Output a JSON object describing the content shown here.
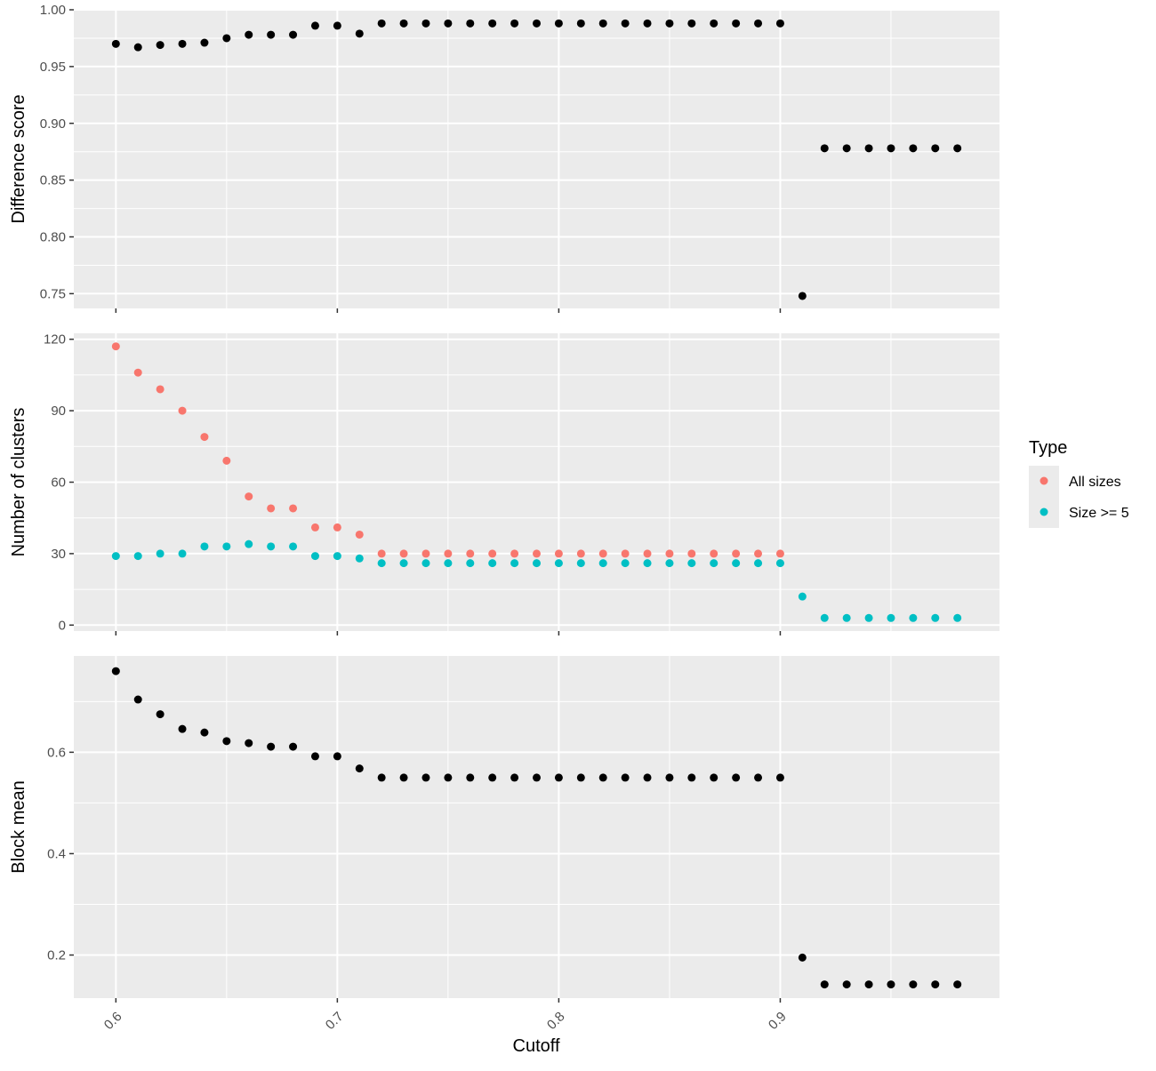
{
  "chart_data": [
    {
      "type": "scatter",
      "panel": "top",
      "ylabel": "Difference score",
      "xlim": [
        0.581,
        0.999
      ],
      "ylim": [
        0.737,
        1.0
      ],
      "x_ticks": [
        0.6,
        0.7,
        0.8,
        0.9
      ],
      "y_ticks": [
        0.75,
        0.8,
        0.85,
        0.9,
        0.95,
        1.0
      ],
      "y_tick_labels": [
        "0.75",
        "0.80",
        "0.85",
        "0.90",
        "0.95",
        "1.00"
      ],
      "grid": true,
      "series": [
        {
          "color": "#000000",
          "x": [
            0.6,
            0.61,
            0.62,
            0.63,
            0.64,
            0.65,
            0.66,
            0.67,
            0.68,
            0.69,
            0.7,
            0.71,
            0.72,
            0.73,
            0.74,
            0.75,
            0.76,
            0.77,
            0.78,
            0.79,
            0.8,
            0.81,
            0.82,
            0.83,
            0.84,
            0.85,
            0.86,
            0.87,
            0.88,
            0.89,
            0.9,
            0.91,
            0.92,
            0.93,
            0.94,
            0.95,
            0.96,
            0.97,
            0.98
          ],
          "y": [
            0.97,
            0.967,
            0.969,
            0.97,
            0.971,
            0.975,
            0.978,
            0.978,
            0.978,
            0.986,
            0.986,
            0.979,
            0.988,
            0.988,
            0.988,
            0.988,
            0.988,
            0.988,
            0.988,
            0.988,
            0.988,
            0.988,
            0.988,
            0.988,
            0.988,
            0.988,
            0.988,
            0.988,
            0.988,
            0.988,
            0.988,
            0.748,
            0.878,
            0.878,
            0.878,
            0.878,
            0.878,
            0.878,
            0.878
          ]
        }
      ]
    },
    {
      "type": "scatter",
      "panel": "middle",
      "ylabel": "Number of clusters",
      "xlim": [
        0.581,
        0.999
      ],
      "ylim": [
        -2.5,
        122.5
      ],
      "x_ticks": [
        0.6,
        0.7,
        0.8,
        0.9
      ],
      "y_ticks": [
        0,
        30,
        60,
        90,
        120
      ],
      "y_tick_labels": [
        "0",
        "30",
        "60",
        "90",
        "120"
      ],
      "grid": true,
      "legend": {
        "title": "Type",
        "position": "right",
        "entries": [
          {
            "label": "All sizes",
            "color": "#F8766D"
          },
          {
            "label": "Size >= 5",
            "color": "#00BFC4"
          }
        ]
      },
      "series": [
        {
          "name": "All sizes",
          "color": "#F8766D",
          "x": [
            0.6,
            0.61,
            0.62,
            0.63,
            0.64,
            0.65,
            0.66,
            0.67,
            0.68,
            0.69,
            0.7,
            0.71,
            0.72,
            0.73,
            0.74,
            0.75,
            0.76,
            0.77,
            0.78,
            0.79,
            0.8,
            0.81,
            0.82,
            0.83,
            0.84,
            0.85,
            0.86,
            0.87,
            0.88,
            0.89,
            0.9
          ],
          "y": [
            117,
            106,
            99,
            90,
            79,
            69,
            54,
            49,
            49,
            41,
            41,
            38,
            30,
            30,
            30,
            30,
            30,
            30,
            30,
            30,
            30,
            30,
            30,
            30,
            30,
            30,
            30,
            30,
            30,
            30,
            30
          ]
        },
        {
          "name": "Size >= 5",
          "color": "#00BFC4",
          "x": [
            0.6,
            0.61,
            0.62,
            0.63,
            0.64,
            0.65,
            0.66,
            0.67,
            0.68,
            0.69,
            0.7,
            0.71,
            0.72,
            0.73,
            0.74,
            0.75,
            0.76,
            0.77,
            0.78,
            0.79,
            0.8,
            0.81,
            0.82,
            0.83,
            0.84,
            0.85,
            0.86,
            0.87,
            0.88,
            0.89,
            0.9,
            0.91,
            0.92,
            0.93,
            0.94,
            0.95,
            0.96,
            0.97,
            0.98
          ],
          "y": [
            29,
            29,
            30,
            30,
            33,
            33,
            34,
            33,
            33,
            29,
            29,
            28,
            26,
            26,
            26,
            26,
            26,
            26,
            26,
            26,
            26,
            26,
            26,
            26,
            26,
            26,
            26,
            26,
            26,
            26,
            26,
            12,
            3,
            3,
            3,
            3,
            3,
            3,
            3
          ]
        }
      ]
    },
    {
      "type": "scatter",
      "panel": "bottom",
      "ylabel": "Block mean",
      "xlabel": "Cutoff",
      "xlim": [
        0.581,
        0.999
      ],
      "ylim": [
        0.115,
        0.79
      ],
      "x_ticks": [
        0.6,
        0.7,
        0.8,
        0.9
      ],
      "x_tick_labels": [
        "0.6",
        "0.7",
        "0.8",
        "0.9"
      ],
      "y_ticks": [
        0.2,
        0.4,
        0.6
      ],
      "y_tick_labels": [
        "0.2",
        "0.4",
        "0.6"
      ],
      "grid": true,
      "series": [
        {
          "color": "#000000",
          "x": [
            0.6,
            0.61,
            0.62,
            0.63,
            0.64,
            0.65,
            0.66,
            0.67,
            0.68,
            0.69,
            0.7,
            0.71,
            0.72,
            0.73,
            0.74,
            0.75,
            0.76,
            0.77,
            0.78,
            0.79,
            0.8,
            0.81,
            0.82,
            0.83,
            0.84,
            0.85,
            0.86,
            0.87,
            0.88,
            0.89,
            0.9,
            0.91,
            0.92,
            0.93,
            0.94,
            0.95,
            0.96,
            0.97,
            0.98
          ],
          "y": [
            0.76,
            0.704,
            0.675,
            0.646,
            0.639,
            0.622,
            0.618,
            0.611,
            0.611,
            0.592,
            0.592,
            0.568,
            0.55,
            0.55,
            0.55,
            0.55,
            0.55,
            0.55,
            0.55,
            0.55,
            0.55,
            0.55,
            0.55,
            0.55,
            0.55,
            0.55,
            0.55,
            0.55,
            0.55,
            0.55,
            0.55,
            0.195,
            0.142,
            0.142,
            0.142,
            0.142,
            0.142,
            0.142,
            0.142
          ]
        }
      ]
    }
  ]
}
